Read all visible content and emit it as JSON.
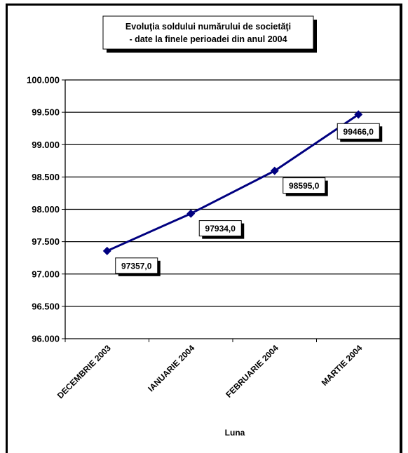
{
  "chart_data": {
    "type": "line",
    "title": [
      "Evoluţia soldului numărului de societăţi",
      "- date la finele perioadei din anul 2004"
    ],
    "xlabel": "Luna",
    "ylabel": "",
    "categories": [
      "DECEMBRIE 2003",
      "IANUARIE 2004",
      "FEBRUARIE 2004",
      "MARTIE 2004"
    ],
    "series": [
      {
        "values": [
          97357.0,
          97934.0,
          98595.0,
          99466.0
        ]
      }
    ],
    "data_labels": [
      "97357,0",
      "97934,0",
      "98595,0",
      "99466,0"
    ],
    "ylim": [
      96000,
      100000
    ],
    "y_ticks": [
      96000,
      96500,
      97000,
      97500,
      98000,
      98500,
      99000,
      99500,
      100000
    ],
    "y_tick_labels": [
      "96.000",
      "96.500",
      "97.000",
      "97.500",
      "98.000",
      "98.500",
      "99.000",
      "99.500",
      "100.000"
    ],
    "grid": true,
    "legend": "none",
    "colors": {
      "series": "#000080",
      "grid": "#000000",
      "background": "#ffffff"
    }
  }
}
